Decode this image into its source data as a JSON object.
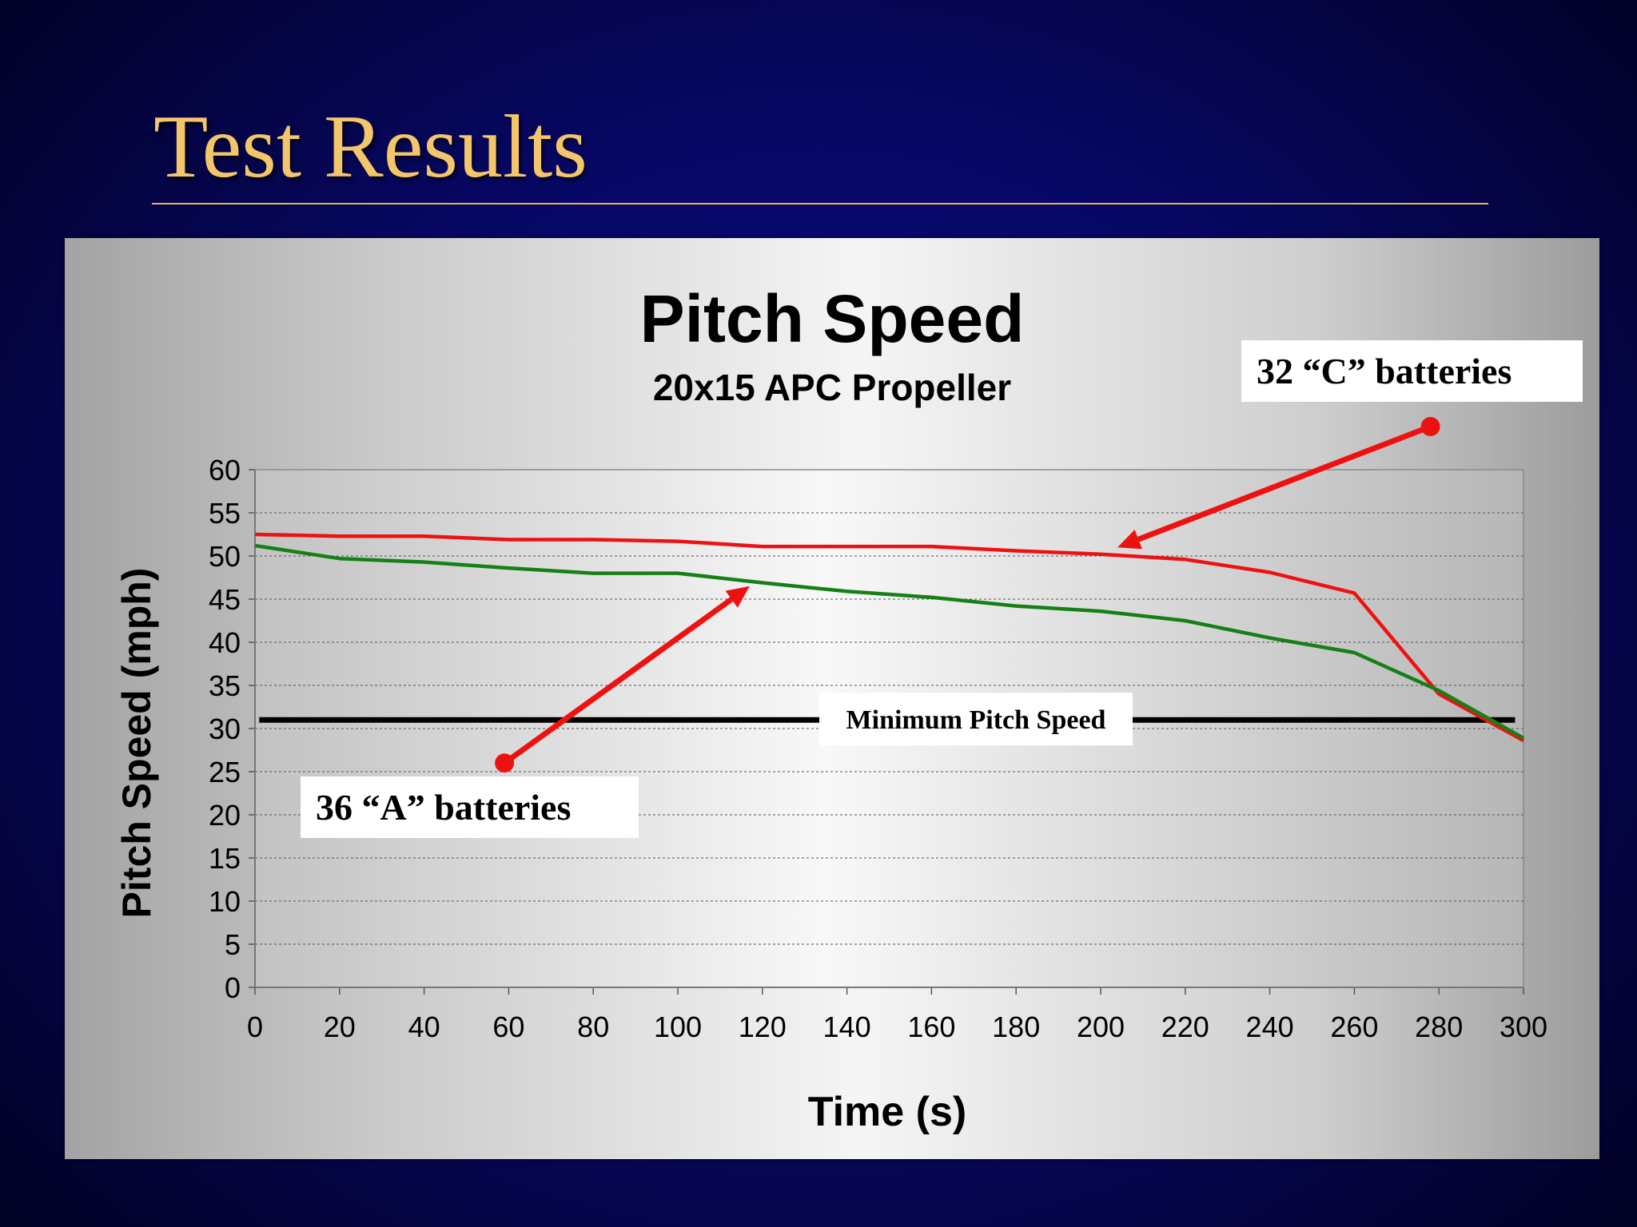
{
  "slide": {
    "title": "Test Results"
  },
  "chart_data": {
    "type": "line",
    "title": "Pitch Speed",
    "subtitle": "20x15 APC Propeller",
    "xlabel": "Time (s)",
    "ylabel": "Pitch Speed (mph)",
    "xlim": [
      0,
      300
    ],
    "ylim": [
      0,
      60
    ],
    "x_ticks": [
      0,
      20,
      40,
      60,
      80,
      100,
      120,
      140,
      160,
      180,
      200,
      220,
      240,
      260,
      280,
      300
    ],
    "y_ticks": [
      0,
      5,
      10,
      15,
      20,
      25,
      30,
      35,
      40,
      45,
      50,
      55,
      60
    ],
    "grid": "horizontal dashed",
    "legend": "none",
    "x": [
      0,
      20,
      40,
      60,
      80,
      100,
      120,
      140,
      160,
      180,
      200,
      220,
      240,
      260,
      280,
      300
    ],
    "series": [
      {
        "color": "#ee1111",
        "values": [
          52.5,
          52.3,
          52.3,
          51.9,
          51.9,
          51.7,
          51.1,
          51.1,
          51.1,
          50.6,
          50.2,
          49.6,
          48.1,
          45.7,
          34.0,
          28.6
        ]
      },
      {
        "color": "#158015",
        "values": [
          51.2,
          49.7,
          49.3,
          48.6,
          48.0,
          48.0,
          46.9,
          45.9,
          45.2,
          44.2,
          43.6,
          42.5,
          40.5,
          38.8,
          34.4,
          28.9
        ]
      }
    ],
    "reference_line": {
      "label": "Minimum Pitch Speed",
      "y": 31,
      "x_from": 1,
      "x_to": 298,
      "color": "#000000"
    },
    "annotations": [
      {
        "label": "32 “C” batteries",
        "points_to": {
          "x": 204,
          "y": 51
        },
        "dot": {
          "x": 278,
          "y": 65
        },
        "arrow_color": "#ee1111"
      },
      {
        "label": "36 “A” batteries",
        "points_to": {
          "x": 117,
          "y": 46.5
        },
        "dot": {
          "x": 59,
          "y": 26
        },
        "arrow_color": "#ee1111"
      }
    ]
  }
}
